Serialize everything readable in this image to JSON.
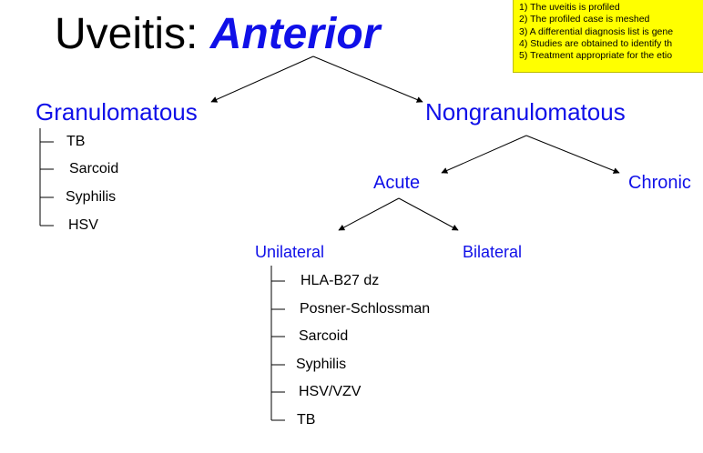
{
  "slide": {
    "title_prefix": "Uveitis: ",
    "title_emphasis": "Anterior",
    "note_lines": [
      "1) The uveitis is profiled",
      "2) The profiled case is meshed",
      "3) A differential diagnosis list is gene",
      "4) Studies are obtained to identify th",
      "5) Treatment appropriate for the etio"
    ],
    "granulomatous": {
      "label": "Granulomatous",
      "items": [
        "TB",
        "Sarcoid",
        "Syphilis",
        "HSV"
      ]
    },
    "nongranulomatous": {
      "label": "Nongranulomatous"
    },
    "acute": {
      "label": "Acute"
    },
    "chronic": {
      "label": "Chronic"
    },
    "unilateral": {
      "label": "Unilateral",
      "items": [
        "HLA-B27 dz",
        "Posner-Schlossman",
        "Sarcoid",
        "Syphilis",
        "HSV/VZV",
        "TB"
      ]
    },
    "bilateral": {
      "label": "Bilateral"
    },
    "colors": {
      "accent_blue": "#1010e8",
      "note_yellow": "#ffff00"
    }
  }
}
